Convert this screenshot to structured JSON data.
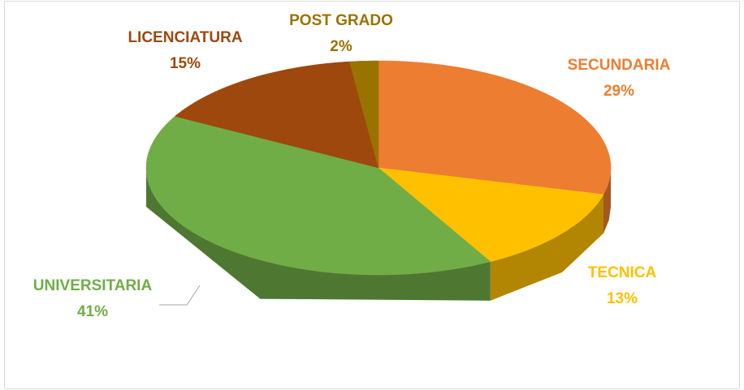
{
  "chart_data": {
    "type": "pie",
    "categories": [
      "SECUNDARIA",
      "TECNICA",
      "UNIVERSITARIA",
      "LICENCIATURA",
      "POST GRADO"
    ],
    "values": [
      29,
      13,
      41,
      15,
      2
    ],
    "value_labels": [
      "29%",
      "13%",
      "41%",
      "15%",
      "2%"
    ],
    "colors": [
      "#ed7d31",
      "#ffc000",
      "#70ad47",
      "#9e480e",
      "#997300"
    ]
  }
}
